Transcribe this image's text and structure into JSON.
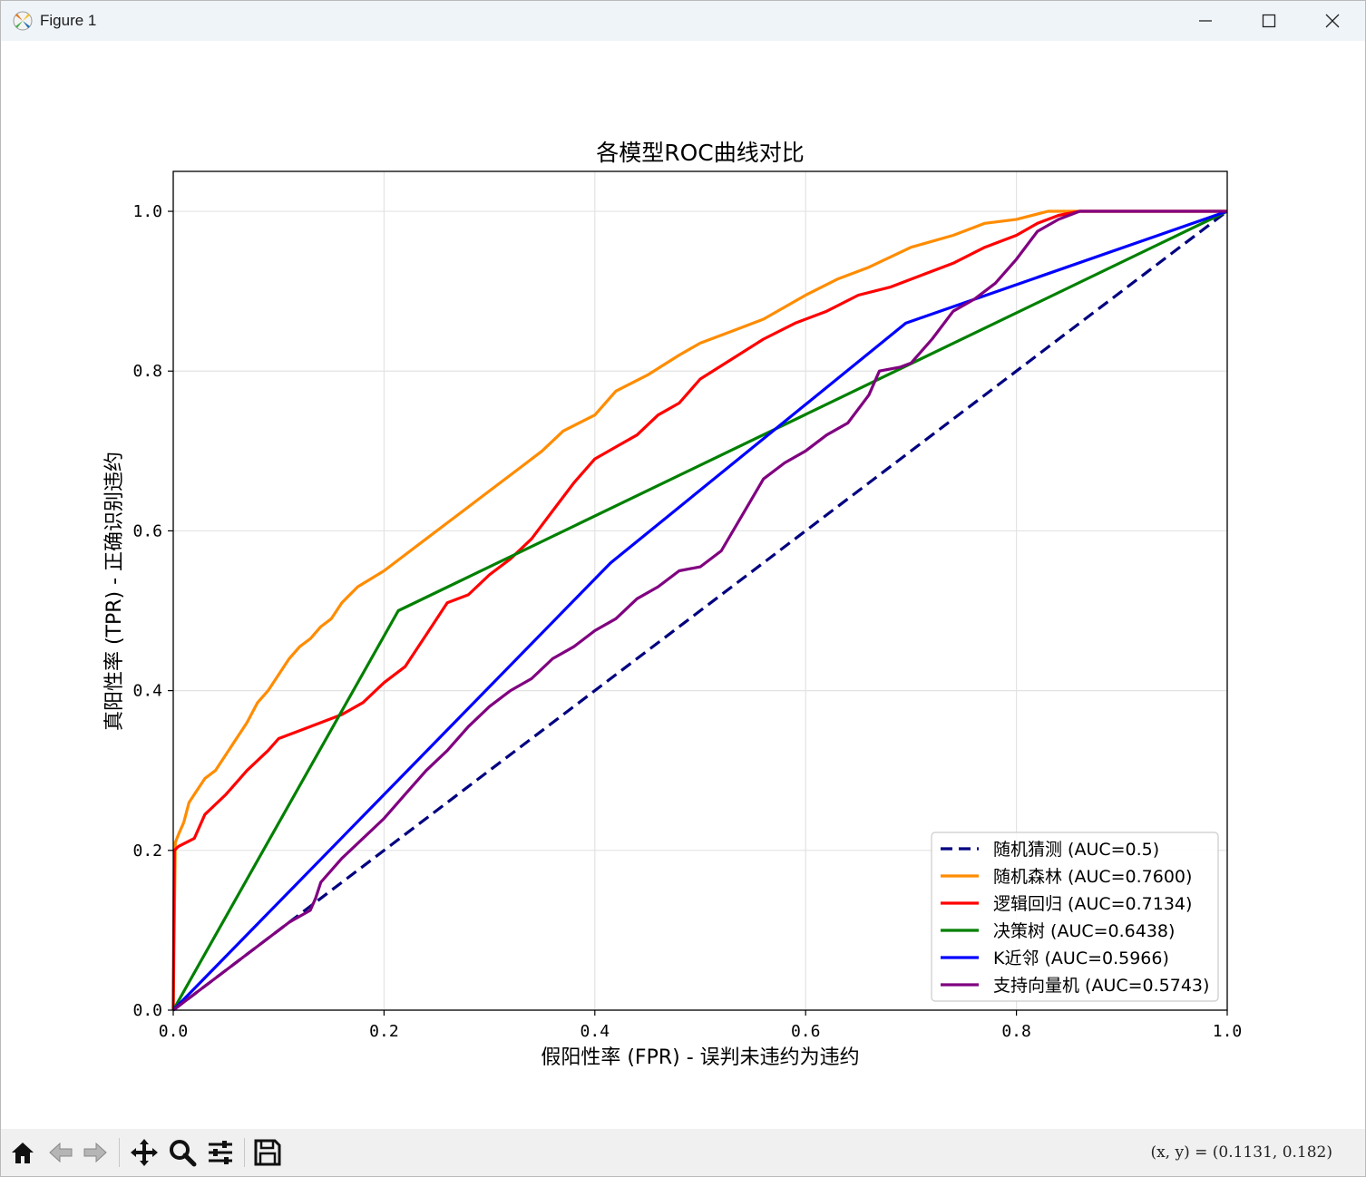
{
  "window": {
    "title": "Figure 1"
  },
  "toolbar": {
    "buttons": [
      {
        "name": "home-icon",
        "label": "Home"
      },
      {
        "name": "back-icon",
        "label": "Back"
      },
      {
        "name": "forward-icon",
        "label": "Forward"
      },
      {
        "name": "pan-icon",
        "label": "Pan"
      },
      {
        "name": "zoom-icon",
        "label": "Zoom"
      },
      {
        "name": "configure-subplots-icon",
        "label": "Configure subplots"
      },
      {
        "name": "save-icon",
        "label": "Save"
      }
    ],
    "coords": "(x, y) = (0.1131, 0.182)"
  },
  "colors": {
    "random": "#000080",
    "rf": "#ff8c00",
    "lr": "#ff0000",
    "dt": "#008000",
    "knn": "#0000ff",
    "svm": "#800080"
  },
  "chart_data": {
    "type": "line",
    "title": "各模型ROC曲线对比",
    "xlabel": "假阳性率 (FPR) - 误判未违约为违约",
    "ylabel": "真阳性率 (TPR) - 正确识别违约",
    "xlim": [
      0.0,
      1.0
    ],
    "ylim": [
      0.0,
      1.05
    ],
    "xticks": [
      "0.0",
      "0.2",
      "0.4",
      "0.6",
      "0.8",
      "1.0"
    ],
    "yticks": [
      "0.0",
      "0.2",
      "0.4",
      "0.6",
      "0.8",
      "1.0"
    ],
    "grid": true,
    "legend_position": "lower-right",
    "series": [
      {
        "key": "random",
        "name": "随机猜测 (AUC=0.5)",
        "style": "dashed",
        "x": [
          0,
          1
        ],
        "y": [
          0,
          1
        ]
      },
      {
        "key": "rf",
        "name": "随机森林 (AUC=0.7600)",
        "style": "solid",
        "x": [
          0,
          0.002,
          0.005,
          0.01,
          0.015,
          0.02,
          0.03,
          0.04,
          0.05,
          0.06,
          0.07,
          0.08,
          0.09,
          0.1,
          0.11,
          0.12,
          0.13,
          0.14,
          0.15,
          0.16,
          0.175,
          0.2,
          0.22,
          0.24,
          0.26,
          0.28,
          0.3,
          0.33,
          0.35,
          0.37,
          0.4,
          0.42,
          0.45,
          0.48,
          0.5,
          0.53,
          0.56,
          0.6,
          0.63,
          0.66,
          0.7,
          0.74,
          0.77,
          0.8,
          0.83,
          0.86,
          0.9,
          1.0
        ],
        "y": [
          0,
          0.21,
          0.22,
          0.235,
          0.26,
          0.27,
          0.29,
          0.3,
          0.32,
          0.34,
          0.36,
          0.385,
          0.4,
          0.42,
          0.44,
          0.455,
          0.465,
          0.48,
          0.49,
          0.51,
          0.53,
          0.55,
          0.57,
          0.59,
          0.61,
          0.63,
          0.65,
          0.68,
          0.7,
          0.725,
          0.745,
          0.775,
          0.795,
          0.82,
          0.835,
          0.85,
          0.865,
          0.895,
          0.915,
          0.93,
          0.955,
          0.97,
          0.985,
          0.99,
          1.0,
          1.0,
          1.0,
          1.0
        ]
      },
      {
        "key": "lr",
        "name": "逻辑回归 (AUC=0.7134)",
        "style": "solid",
        "x": [
          0,
          0.001,
          0.005,
          0.02,
          0.03,
          0.05,
          0.07,
          0.09,
          0.1,
          0.12,
          0.14,
          0.16,
          0.18,
          0.2,
          0.22,
          0.24,
          0.26,
          0.28,
          0.3,
          0.32,
          0.34,
          0.36,
          0.38,
          0.4,
          0.42,
          0.44,
          0.46,
          0.48,
          0.5,
          0.53,
          0.56,
          0.59,
          0.62,
          0.65,
          0.68,
          0.71,
          0.74,
          0.77,
          0.8,
          0.82,
          0.84,
          0.86,
          1.0
        ],
        "y": [
          0,
          0.2,
          0.205,
          0.215,
          0.245,
          0.27,
          0.3,
          0.325,
          0.34,
          0.35,
          0.36,
          0.37,
          0.385,
          0.41,
          0.43,
          0.47,
          0.51,
          0.52,
          0.545,
          0.565,
          0.59,
          0.625,
          0.66,
          0.69,
          0.705,
          0.72,
          0.745,
          0.76,
          0.79,
          0.815,
          0.84,
          0.86,
          0.875,
          0.895,
          0.905,
          0.92,
          0.935,
          0.955,
          0.97,
          0.985,
          0.995,
          1.0,
          1.0
        ]
      },
      {
        "key": "dt",
        "name": "决策树 (AUC=0.6438)",
        "style": "solid",
        "x": [
          0,
          0.2135,
          1.0
        ],
        "y": [
          0,
          0.5,
          1.0
        ]
      },
      {
        "key": "knn",
        "name": "K近邻 (AUC=0.5966)",
        "style": "solid",
        "x": [
          0,
          0.415,
          0.695,
          1.0
        ],
        "y": [
          0,
          0.56,
          0.86,
          1.0
        ]
      },
      {
        "key": "svm",
        "name": "支持向量机 (AUC=0.5743)",
        "style": "solid",
        "x": [
          0,
          0.02,
          0.05,
          0.08,
          0.11,
          0.13,
          0.135,
          0.14,
          0.16,
          0.18,
          0.2,
          0.22,
          0.24,
          0.26,
          0.28,
          0.3,
          0.32,
          0.34,
          0.36,
          0.38,
          0.4,
          0.42,
          0.44,
          0.46,
          0.48,
          0.5,
          0.52,
          0.54,
          0.56,
          0.58,
          0.6,
          0.62,
          0.64,
          0.66,
          0.67,
          0.69,
          0.7,
          0.72,
          0.74,
          0.76,
          0.78,
          0.8,
          0.82,
          0.84,
          0.86,
          1.0
        ],
        "y": [
          0,
          0.02,
          0.05,
          0.08,
          0.11,
          0.125,
          0.14,
          0.16,
          0.19,
          0.215,
          0.24,
          0.27,
          0.3,
          0.325,
          0.355,
          0.38,
          0.4,
          0.415,
          0.44,
          0.455,
          0.475,
          0.49,
          0.515,
          0.53,
          0.55,
          0.555,
          0.575,
          0.62,
          0.665,
          0.685,
          0.7,
          0.72,
          0.735,
          0.77,
          0.8,
          0.805,
          0.81,
          0.84,
          0.875,
          0.89,
          0.91,
          0.94,
          0.975,
          0.99,
          1.0,
          1.0
        ]
      }
    ]
  }
}
